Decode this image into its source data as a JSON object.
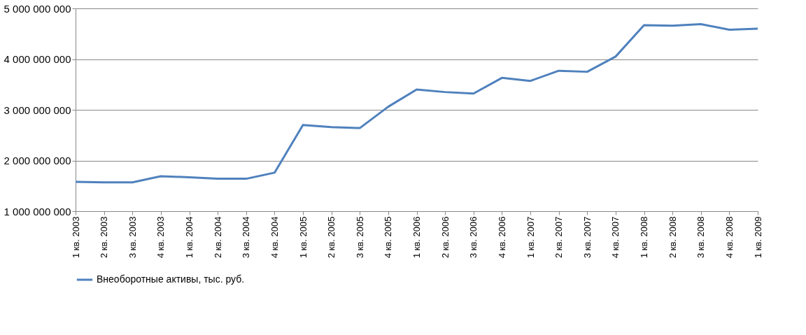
{
  "chart_data": {
    "type": "line",
    "categories": [
      "1 кв. 2003",
      "2 кв. 2003",
      "3 кв. 2003",
      "4 кв. 2003",
      "1 кв. 2004",
      "2 кв. 2004",
      "3 кв. 2004",
      "4 кв. 2004",
      "1 кв. 2005",
      "2 кв. 2005",
      "3 кв. 2005",
      "4 кв. 2005",
      "1 кв. 2006",
      "2 кв. 2006",
      "3 кв. 2006",
      "4 кв. 2006",
      "1 кв. 2007",
      "2 кв. 2007",
      "3 кв. 2007",
      "4 кв. 2007",
      "1 кв. 2008",
      "2 кв. 2008",
      "3 кв. 2008",
      "4 кв. 2008",
      "1 кв. 2009"
    ],
    "series": [
      {
        "name": "Внеоборотные активы, тыс. руб.",
        "color": "#4f81bd",
        "values": [
          1580000000,
          1570000000,
          1570000000,
          1690000000,
          1670000000,
          1640000000,
          1640000000,
          1760000000,
          2700000000,
          2660000000,
          2640000000,
          3060000000,
          3400000000,
          3350000000,
          3320000000,
          3630000000,
          3570000000,
          3770000000,
          3750000000,
          4050000000,
          4670000000,
          4660000000,
          4690000000,
          4580000000,
          4600000000
        ]
      }
    ],
    "ylim": [
      1000000000,
      5000000000
    ],
    "yticks": [
      {
        "value": 1000000000,
        "label": "1 000 000 000"
      },
      {
        "value": 2000000000,
        "label": "2 000 000 000"
      },
      {
        "value": 3000000000,
        "label": "3 000 000 000"
      },
      {
        "value": 4000000000,
        "label": "4 000 000 000"
      },
      {
        "value": 5000000000,
        "label": "5 000 000 000"
      }
    ],
    "grid": "y",
    "legend": "bottom",
    "marker": "none",
    "line_style": "solid"
  }
}
